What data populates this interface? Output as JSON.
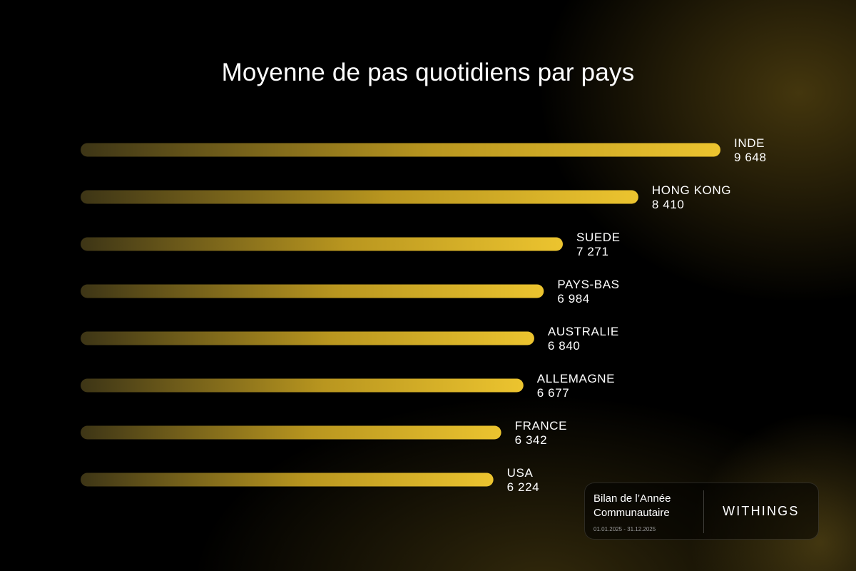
{
  "chart_data": {
    "type": "bar",
    "orientation": "horizontal",
    "title": "Moyenne de pas quotidiens par pays",
    "categories": [
      "INDE",
      "HONG KONG",
      "SUEDE",
      "PAYS-BAS",
      "AUSTRALIE",
      "ALLEMAGNE",
      "FRANCE",
      "USA"
    ],
    "values": [
      9648,
      8410,
      7271,
      6984,
      6840,
      6677,
      6342,
      6224
    ],
    "value_labels": [
      "9 648",
      "8 410",
      "7 271",
      "6 984",
      "6 840",
      "6 677",
      "6 342",
      "6 224"
    ],
    "grid": false,
    "legend": "none",
    "colors": {
      "bar_start": "#3d3516",
      "bar_mid": "#b9961f",
      "bar_end": "#ecc42f"
    }
  },
  "card": {
    "title_line1": "Bilan de l’Année",
    "title_line2": "Communautaire",
    "dates": "01.01.2025 - 31.12.2025",
    "brand": "WITHINGS"
  }
}
